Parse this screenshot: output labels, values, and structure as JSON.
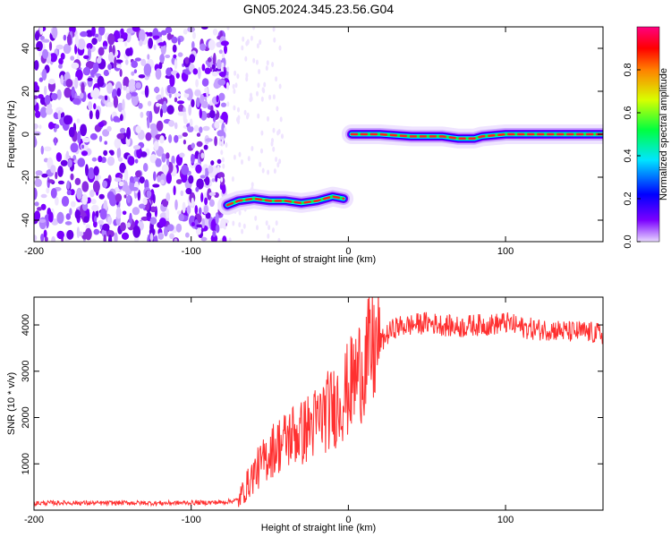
{
  "title": "GN05.2024.345.23.56.G04",
  "chart_data": [
    {
      "type": "heatmap",
      "xlabel": "Height of straight line (km)",
      "ylabel": "Frequency (Hz)",
      "xlim": [
        -200,
        162
      ],
      "ylim": [
        -50,
        50
      ],
      "xticks": [
        -200,
        -100,
        0,
        100
      ],
      "yticks": [
        -40,
        -20,
        0,
        20,
        40
      ],
      "colorbar": {
        "label": "Normalized spectral amplitude",
        "range": [
          0,
          1
        ],
        "ticks": [
          "0.0",
          "0.2",
          "0.4",
          "0.6",
          "0.8"
        ],
        "colors": [
          "#e8d8ff",
          "#7b00ff",
          "#0000ff",
          "#00e5ff",
          "#00ff40",
          "#d8ff00",
          "#ff8000",
          "#ff0000",
          "#ff0080"
        ]
      },
      "noise_region": {
        "x_range": [
          -200,
          -77
        ],
        "freq_range": [
          -50,
          50
        ]
      },
      "traces": [
        {
          "x": [
            -77,
            -70,
            -60,
            -50,
            -40,
            -30,
            -20,
            -10,
            -3
          ],
          "freq": [
            -33,
            -31,
            -30,
            -31,
            -31,
            -32,
            -31,
            -29,
            -30
          ]
        },
        {
          "x": [
            2,
            20,
            40,
            60,
            70,
            80,
            85,
            100,
            120,
            140,
            162
          ],
          "freq": [
            0,
            0,
            -1,
            -1,
            -2,
            -2,
            -1,
            0,
            0,
            0,
            0
          ]
        }
      ]
    },
    {
      "type": "line",
      "xlabel": "Height of straight line (km)",
      "ylabel": "SNR (10 * v/v)",
      "xlim": [
        -200,
        162
      ],
      "ylim": [
        0,
        4600
      ],
      "xticks": [
        -200,
        -100,
        0,
        100
      ],
      "yticks": [
        1000,
        2000,
        3000,
        4000
      ],
      "color": "#ff0000",
      "x": [
        -200,
        -180,
        -160,
        -140,
        -120,
        -100,
        -80,
        -70,
        -65,
        -60,
        -55,
        -50,
        -45,
        -40,
        -35,
        -30,
        -25,
        -20,
        -15,
        -10,
        -5,
        0,
        5,
        10,
        15,
        20,
        25,
        30,
        40,
        50,
        60,
        70,
        80,
        90,
        100,
        110,
        120,
        130,
        140,
        150,
        162
      ],
      "y": [
        150,
        160,
        150,
        160,
        150,
        160,
        170,
        220,
        500,
        800,
        1000,
        1250,
        1400,
        1500,
        1650,
        1650,
        1800,
        1900,
        2100,
        2200,
        2400,
        2600,
        2900,
        3200,
        3400,
        3600,
        3800,
        3950,
        4000,
        4050,
        4000,
        3950,
        4000,
        4000,
        4050,
        3950,
        3900,
        3900,
        3850,
        3850,
        3800
      ]
    }
  ]
}
